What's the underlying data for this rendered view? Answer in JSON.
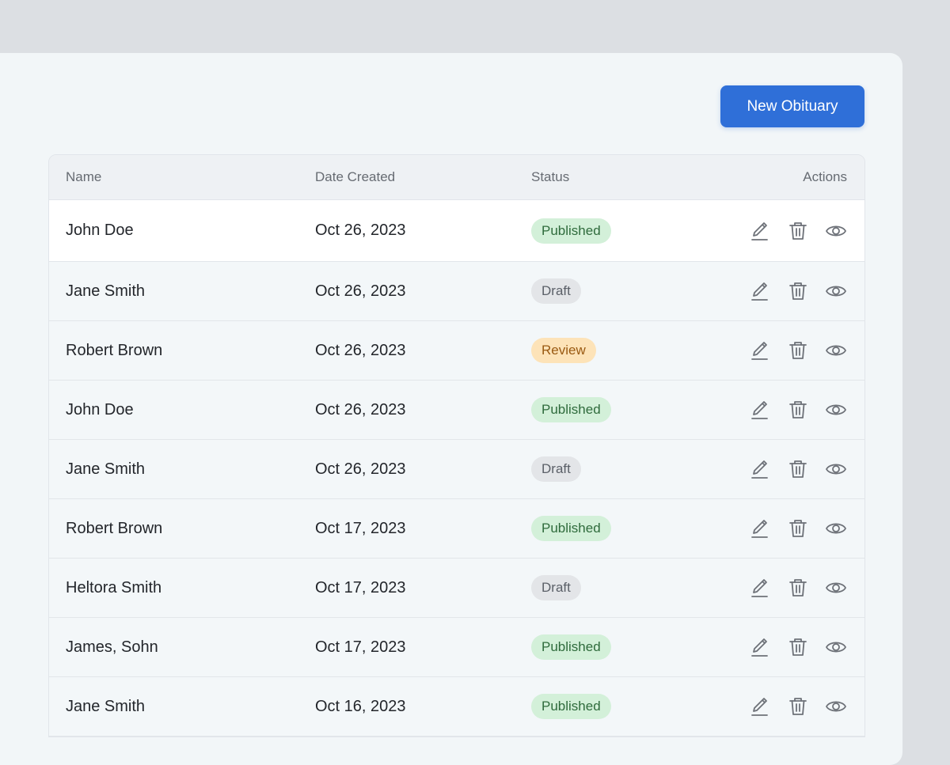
{
  "toolbar": {
    "new_label": "New Obituary"
  },
  "colors": {
    "accent": "#2f6fd8",
    "published_bg": "#d3f0d9",
    "published_text": "#2f6b3c",
    "draft_bg": "#e3e5e8",
    "draft_text": "#5b6068",
    "review_bg": "#fde3b8",
    "review_text": "#9a5a12"
  },
  "table": {
    "headers": {
      "name": "Name",
      "date": "Date Created",
      "status": "Status",
      "actions": "Actions"
    },
    "action_icons": [
      "edit-icon",
      "trash-icon",
      "eye-icon"
    ],
    "rows": [
      {
        "name": "John Doe",
        "date": "Oct 26, 2023",
        "status": "Published"
      },
      {
        "name": "Jane Smith",
        "date": "Oct 26, 2023",
        "status": "Draft"
      },
      {
        "name": "Robert Brown",
        "date": "Oct 26, 2023",
        "status": "Review"
      },
      {
        "name": "John Doe",
        "date": "Oct 26, 2023",
        "status": "Published"
      },
      {
        "name": "Jane Smith",
        "date": "Oct 26, 2023",
        "status": "Draft"
      },
      {
        "name": "Robert Brown",
        "date": "Oct 17, 2023",
        "status": "Published"
      },
      {
        "name": "Heltora Smith",
        "date": "Oct 17, 2023",
        "status": "Draft"
      },
      {
        "name": "James, Sohn",
        "date": "Oct 17, 2023",
        "status": "Published"
      },
      {
        "name": "Jane Smith",
        "date": "Oct 16, 2023",
        "status": "Published"
      }
    ]
  }
}
